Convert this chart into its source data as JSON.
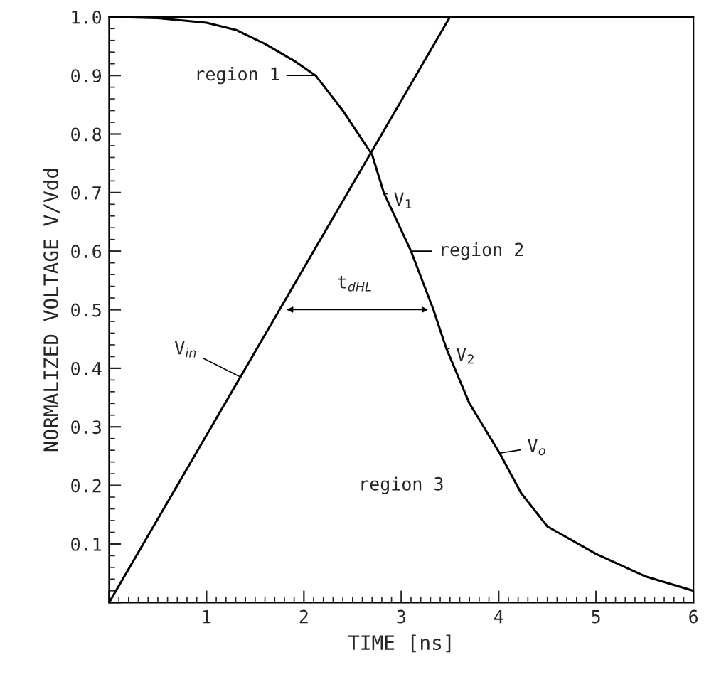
{
  "chart_data": {
    "type": "line",
    "xlabel": "TIME [ns]",
    "ylabel": "NORMALIZED VOLTAGE V/Vdd",
    "xlim": [
      0,
      6
    ],
    "ylim": [
      0,
      1.0
    ],
    "xticks": [
      {
        "value": 0,
        "label": null
      },
      1,
      2,
      3,
      4,
      5,
      6
    ],
    "yticks": [
      {
        "value": 0,
        "label": null
      },
      0.1,
      0.2,
      0.3,
      0.4,
      0.5,
      0.6,
      0.7,
      0.8,
      0.9,
      {
        "value": 1.0,
        "label": "1.0"
      }
    ],
    "grid": false,
    "legend": false,
    "marker": "none",
    "line_style": "solid",
    "series": [
      {
        "color": "#000000",
        "x": [
          0,
          3.5
        ],
        "values": [
          0,
          1.0
        ]
      },
      {
        "color": "#000000",
        "x": [
          0,
          0.5,
          1.0,
          1.3,
          1.6,
          1.9,
          2.12,
          2.4,
          2.7,
          2.82,
          3.1,
          3.33,
          3.46,
          3.7,
          4.01,
          4.23,
          4.5,
          5.0,
          5.5,
          6.0
        ],
        "values": [
          1.0,
          0.998,
          0.99,
          0.978,
          0.954,
          0.925,
          0.9,
          0.84,
          0.765,
          0.7,
          0.6,
          0.5,
          0.435,
          0.34,
          0.255,
          0.187,
          0.13,
          0.083,
          0.045,
          0.02
        ]
      }
    ],
    "annotations": [
      {
        "text": "region 1",
        "x": 2.12,
        "y": 0.9
      },
      {
        "text": "region 2",
        "x": 3.1,
        "y": 0.6
      },
      "region 3",
      {
        "text": "V$_{1}$",
        "x": 2.82,
        "y": 0.7
      },
      {
        "text": "V$_{2}$",
        "x": 3.46,
        "y": 0.435
      },
      {
        "text": "V$_{o}$",
        "x": 4.01,
        "y": 0.255
      },
      {
        "text": "V$_{in}$",
        "x": 1.35,
        "y": 0.385
      },
      "t$_{dHL}$"
    ]
  }
}
